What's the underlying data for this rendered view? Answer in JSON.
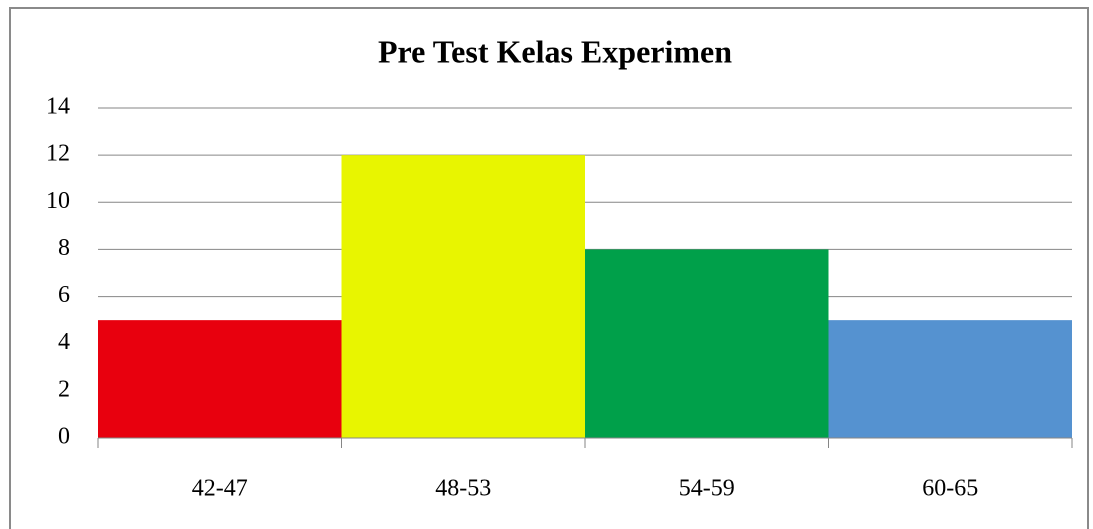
{
  "chart_data": {
    "type": "bar",
    "title": "Pre Test Kelas Experimen",
    "categories": [
      "42-47",
      "48-53",
      "54-59",
      "60-65"
    ],
    "values": [
      5,
      12,
      8,
      5
    ],
    "colors": [
      "#e8000e",
      "#e8f500",
      "#00a04a",
      "#5592d0"
    ],
    "ylim": [
      0,
      14
    ],
    "yticks": [
      0,
      2,
      4,
      6,
      8,
      10,
      12,
      14
    ],
    "grid": true
  }
}
